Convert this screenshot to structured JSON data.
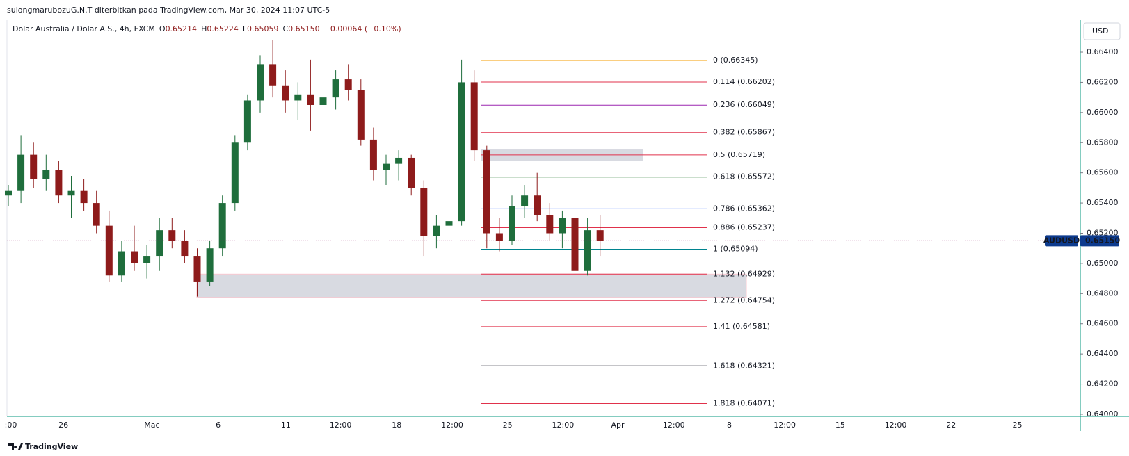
{
  "page": {
    "publisher": "sulongmarubozuG.N.T diterbitkan pada TradingView.com, Mar 30, 2024 11:07 UTC-5",
    "logo": "TradingView"
  },
  "chart_data": {
    "type": "candlestick",
    "symbol": "Dolar Australia / Dolar A.S., 4h, FXCM",
    "ohlc": [
      {
        "k": "O",
        "v": "0.65214"
      },
      {
        "k": "H",
        "v": "0.65224"
      },
      {
        "k": "L",
        "v": "0.65059"
      },
      {
        "k": "C",
        "v": "0.65150"
      }
    ],
    "change": "−0.00064 (−0.10%)",
    "currency": "USD",
    "ticker": "AUDUSD",
    "last_price": 0.6515,
    "last_price_label": "0.65150",
    "ylim": [
      0.63986,
      0.66612
    ],
    "yticks": [
      {
        "value": 0.664,
        "label": "0.66400"
      },
      {
        "value": 0.662,
        "label": "0.66200"
      },
      {
        "value": 0.66,
        "label": "0.66000"
      },
      {
        "value": 0.658,
        "label": "0.65800"
      },
      {
        "value": 0.656,
        "label": "0.65600"
      },
      {
        "value": 0.654,
        "label": "0.65400"
      },
      {
        "value": 0.652,
        "label": "0.65200"
      },
      {
        "value": 0.65,
        "label": "0.65000"
      },
      {
        "value": 0.648,
        "label": "0.64800"
      },
      {
        "value": 0.646,
        "label": "0.64600"
      },
      {
        "value": 0.644,
        "label": "0.64400"
      },
      {
        "value": 0.642,
        "label": "0.64200"
      },
      {
        "value": 0.64,
        "label": "0.64000"
      }
    ],
    "xlabels": [
      ":00",
      "26",
      "Mac",
      "6",
      "11",
      "12:00",
      "18",
      "12:00",
      "25",
      "12:00",
      "Apr",
      "12:00",
      "8",
      "12:00",
      "15",
      "12:00",
      "22",
      "25"
    ],
    "up_color": "#1f6e3c",
    "down_color": "#8e1b1b",
    "candles": [
      [
        0.6545,
        0.6552,
        0.6538,
        0.6548
      ],
      [
        0.6548,
        0.6585,
        0.654,
        0.6572
      ],
      [
        0.6572,
        0.658,
        0.655,
        0.6556
      ],
      [
        0.6556,
        0.6572,
        0.6548,
        0.6562
      ],
      [
        0.6562,
        0.6568,
        0.654,
        0.6545
      ],
      [
        0.6545,
        0.6558,
        0.653,
        0.6548
      ],
      [
        0.6548,
        0.6556,
        0.6535,
        0.654
      ],
      [
        0.654,
        0.6548,
        0.652,
        0.6525
      ],
      [
        0.6525,
        0.6535,
        0.6488,
        0.6492
      ],
      [
        0.6492,
        0.6515,
        0.6488,
        0.6508
      ],
      [
        0.6508,
        0.6525,
        0.6495,
        0.65
      ],
      [
        0.65,
        0.6512,
        0.649,
        0.6505
      ],
      [
        0.6505,
        0.653,
        0.6495,
        0.6522
      ],
      [
        0.6522,
        0.653,
        0.651,
        0.6515
      ],
      [
        0.6515,
        0.6522,
        0.65,
        0.6505
      ],
      [
        0.6505,
        0.651,
        0.6478,
        0.6488
      ],
      [
        0.6488,
        0.6515,
        0.6485,
        0.651
      ],
      [
        0.651,
        0.6545,
        0.6505,
        0.654
      ],
      [
        0.654,
        0.6585,
        0.6535,
        0.658
      ],
      [
        0.658,
        0.6612,
        0.6575,
        0.6608
      ],
      [
        0.6608,
        0.6638,
        0.66,
        0.6632
      ],
      [
        0.6632,
        0.6648,
        0.661,
        0.6618
      ],
      [
        0.6618,
        0.6628,
        0.66,
        0.6608
      ],
      [
        0.6608,
        0.662,
        0.6595,
        0.6612
      ],
      [
        0.6612,
        0.6635,
        0.6588,
        0.6605
      ],
      [
        0.6605,
        0.6618,
        0.6592,
        0.661
      ],
      [
        0.661,
        0.6628,
        0.6602,
        0.6622
      ],
      [
        0.6622,
        0.6632,
        0.6608,
        0.6615
      ],
      [
        0.6615,
        0.6622,
        0.6578,
        0.6582
      ],
      [
        0.6582,
        0.659,
        0.6555,
        0.6562
      ],
      [
        0.6562,
        0.6572,
        0.6552,
        0.6566
      ],
      [
        0.6566,
        0.6575,
        0.6555,
        0.657
      ],
      [
        0.657,
        0.6572,
        0.6545,
        0.655
      ],
      [
        0.655,
        0.6555,
        0.6505,
        0.6518
      ],
      [
        0.6518,
        0.6532,
        0.651,
        0.6525
      ],
      [
        0.6525,
        0.6535,
        0.6512,
        0.6528
      ],
      [
        0.6528,
        0.6635,
        0.6525,
        0.662
      ],
      [
        0.662,
        0.6628,
        0.6568,
        0.6575
      ],
      [
        0.6575,
        0.6578,
        0.651,
        0.652
      ],
      [
        0.652,
        0.653,
        0.6508,
        0.6515
      ],
      [
        0.6515,
        0.6545,
        0.6512,
        0.6538
      ],
      [
        0.6538,
        0.6552,
        0.653,
        0.6545
      ],
      [
        0.6545,
        0.656,
        0.6528,
        0.6532
      ],
      [
        0.6532,
        0.654,
        0.6515,
        0.652
      ],
      [
        0.652,
        0.6535,
        0.651,
        0.653
      ],
      [
        0.653,
        0.6535,
        0.6485,
        0.6495
      ],
      [
        0.6495,
        0.653,
        0.6492,
        0.6522
      ],
      [
        0.6522,
        0.6532,
        0.6505,
        0.6515
      ]
    ],
    "zones": [
      {
        "top": 0.65755,
        "bottom": 0.6568
      },
      {
        "top": 0.64929,
        "bottom": 0.64775
      }
    ],
    "fib": {
      "values": [
        0.66345,
        0.66202,
        0.66049,
        0.65867,
        0.65719,
        0.65572,
        0.65362,
        0.65237,
        0.65094,
        0.64929,
        0.64754,
        0.64581,
        0.64321,
        0.64071
      ],
      "value_labels": [
        "0 (0.66345)",
        "0.114 (0.66202)",
        "0.236 (0.66049)",
        "0.382 (0.65867)",
        "0.5 (0.65719)",
        "0.618 (0.65572)",
        "0.786 (0.65362)",
        "0.886 (0.65237)",
        "1 (0.65094)",
        "1.132 (0.64929)",
        "1.272 (0.64754)",
        "1.41 (0.64581)",
        "1.618 (0.64321)",
        "1.818 (0.64071)"
      ],
      "colors": [
        "#f59c00",
        "#e0314b",
        "#9c27b0",
        "#e0314b",
        "#e0314b",
        "#2e7d32",
        "#2962ff",
        "#e0314b",
        "#00838f",
        "#e0314b",
        "#e0314b",
        "#e0314b",
        "#131722",
        "#e0314b"
      ]
    }
  }
}
